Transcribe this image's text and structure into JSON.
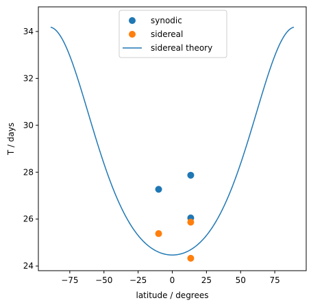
{
  "chart_data": {
    "type": "scatter",
    "xlabel": "latitude / degrees",
    "ylabel": "T / days",
    "xlim": [
      -98,
      98
    ],
    "ylim": [
      23.8,
      35.05
    ],
    "x_ticks": [
      -75,
      -50,
      -25,
      0,
      25,
      50,
      75
    ],
    "y_ticks": [
      24,
      26,
      28,
      30,
      32,
      34
    ],
    "grid": false,
    "legend_position": "top-center",
    "series": [
      {
        "name": "synodic",
        "kind": "scatter",
        "color": "#1f77b4",
        "points": [
          [
            -10,
            27.27
          ],
          [
            13.5,
            27.87
          ],
          [
            13.5,
            26.05
          ]
        ]
      },
      {
        "name": "sidereal",
        "kind": "scatter",
        "color": "#ff7f0e",
        "points": [
          [
            -10,
            25.38
          ],
          [
            13.5,
            25.87
          ],
          [
            13.5,
            24.33
          ]
        ]
      },
      {
        "name": "sidereal theory",
        "kind": "line",
        "color": "#1f77b4",
        "model": {
          "A": 14.713,
          "B": 2.396,
          "C": 1.787
        },
        "x_range": [
          -89,
          89
        ]
      }
    ]
  }
}
